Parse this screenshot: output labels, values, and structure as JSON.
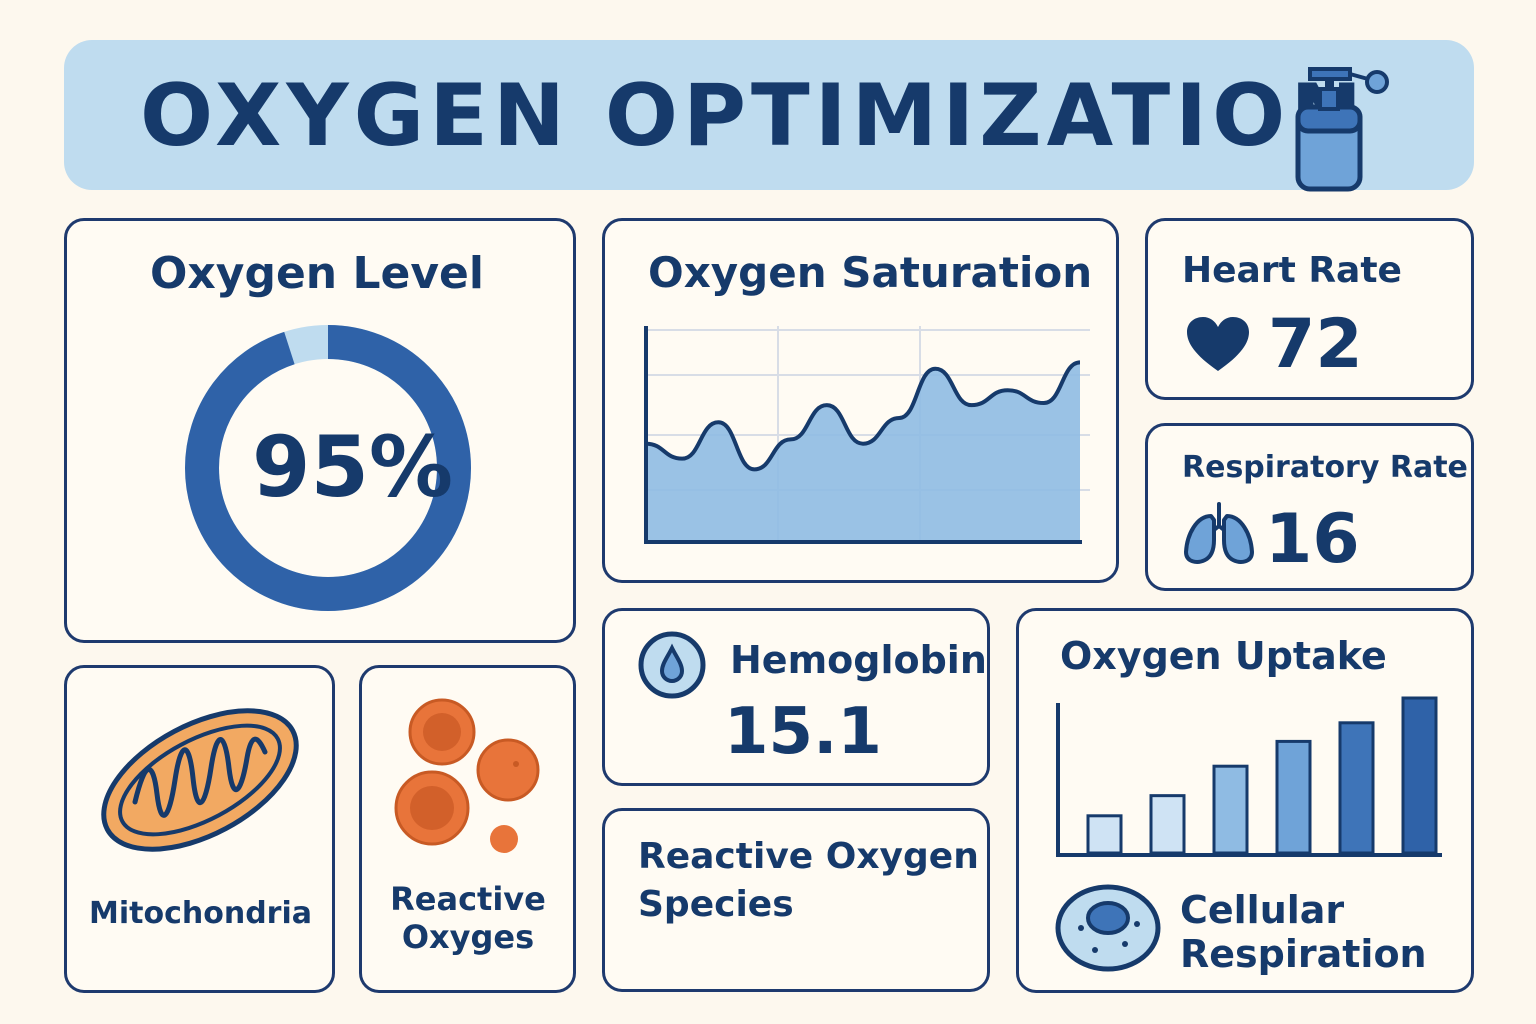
{
  "header": {
    "title": "OXYGEN OPTIMIZATION",
    "icon": "oxygen-tank-icon"
  },
  "oxygen_level": {
    "title": "Oxygen Level",
    "value": "95%",
    "fraction": 0.95
  },
  "oxygen_saturation": {
    "title": "Oxygen Saturation",
    "chart_data": {
      "type": "area",
      "title": "Oxygen Saturation",
      "values": [
        0.45,
        0.38,
        0.55,
        0.33,
        0.47,
        0.63,
        0.45,
        0.57,
        0.8,
        0.63,
        0.7,
        0.64,
        0.83
      ],
      "grid": true
    }
  },
  "heart_rate": {
    "title": "Heart Rate",
    "value": "72",
    "icon": "heart-icon"
  },
  "respiratory_rate": {
    "title": "Respiratory Rate",
    "value": "16",
    "icon": "lungs-icon"
  },
  "hemoglobin": {
    "title": "Hemoglobin",
    "value": "15.1",
    "icon": "droplet-icon"
  },
  "oxygen_uptake": {
    "title": "Oxygen Uptake",
    "chart_data": {
      "type": "bar",
      "values": [
        0.24,
        0.37,
        0.56,
        0.72,
        0.84,
        1.0
      ],
      "colors": [
        "#cfe3f4",
        "#cfe3f4",
        "#8fbbe3",
        "#6fa3d8",
        "#3e74b8",
        "#2f62a8"
      ]
    }
  },
  "mitochondria": {
    "label": "Mitochondria",
    "icon": "mitochondria-icon"
  },
  "reactive_oxyges": {
    "label_line1": "Reactive",
    "label_line2": "Oxyges",
    "icon": "cells-icon"
  },
  "reactive_oxygen_species": {
    "line1": "Reactive Oxygen",
    "line2": "Species"
  },
  "cellular_respiration": {
    "line1": "Cellular",
    "line2": "Respiration",
    "icon": "cell-icon"
  },
  "colors": {
    "navy": "#163a6b",
    "blue": "#2f62a8",
    "light_blue": "#bfdcef",
    "orange": "#e8743a",
    "background": "#fdf8ee"
  }
}
